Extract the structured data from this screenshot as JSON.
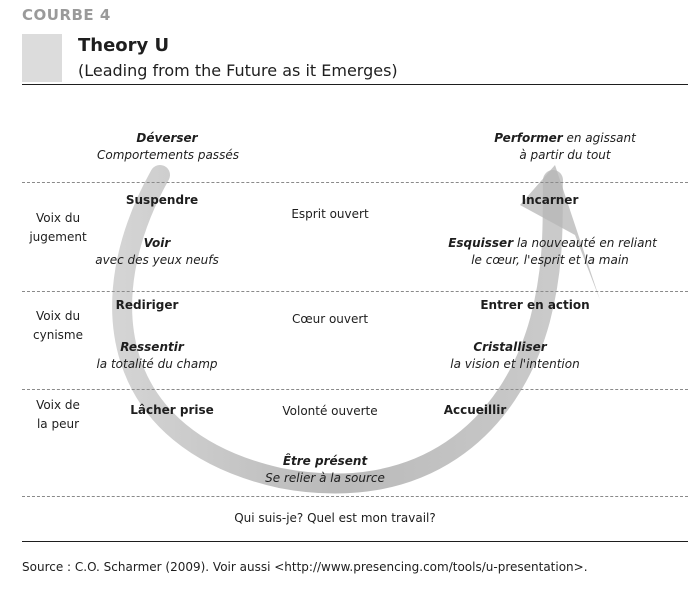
{
  "header": {
    "tag": "COURBE 4",
    "title": "Theory U",
    "subtitle": "(Leading from the Future as it Emerges)"
  },
  "bands": [
    {
      "line1": "Voix du",
      "line2": "jugement"
    },
    {
      "line1": "Voix du",
      "line2": "cynisme"
    },
    {
      "line1": "Voix de",
      "line2": "la peur"
    }
  ],
  "top_left": {
    "bold": "Déverser",
    "sub": "Comportements passés"
  },
  "top_right": {
    "bold": "Performer",
    "rest": " en agissant",
    "sub": "à partir du tout"
  },
  "left_side": {
    "suspendre": "Suspendre",
    "voir": "Voir",
    "voir_sub": "avec des yeux neufs",
    "rediriger": "Rediriger",
    "ressentir": "Ressentir",
    "ressentir_sub": "la totalité du champ",
    "lacher": "Lâcher prise"
  },
  "center": {
    "esprit": "Esprit ouvert",
    "coeur": "Cœur ouvert",
    "volonte": "Volonté ouverte",
    "etre": "Être présent",
    "etre_sub": "Se relier à la source",
    "question": "Qui suis-je? Quel est mon travail?"
  },
  "right_side": {
    "incarner": "Incarner",
    "esquisser": "Esquisser",
    "esquisser_rest": " la nouveauté en reliant",
    "esquisser_sub": "le cœur, l'esprit et la main",
    "entrer": "Entrer en action",
    "cristalliser": "Cristalliser",
    "cristalliser_sub": "la vision et l'intention",
    "accueillir": "Accueillir"
  },
  "source": "Source : C.O. Scharmer (2009). Voir aussi <http://www.presencing.com/tools/u-presentation>.",
  "colors": {
    "arc": "#bdbdbd",
    "dash": "#8a8a8a",
    "tag": "#9a9a9a"
  }
}
